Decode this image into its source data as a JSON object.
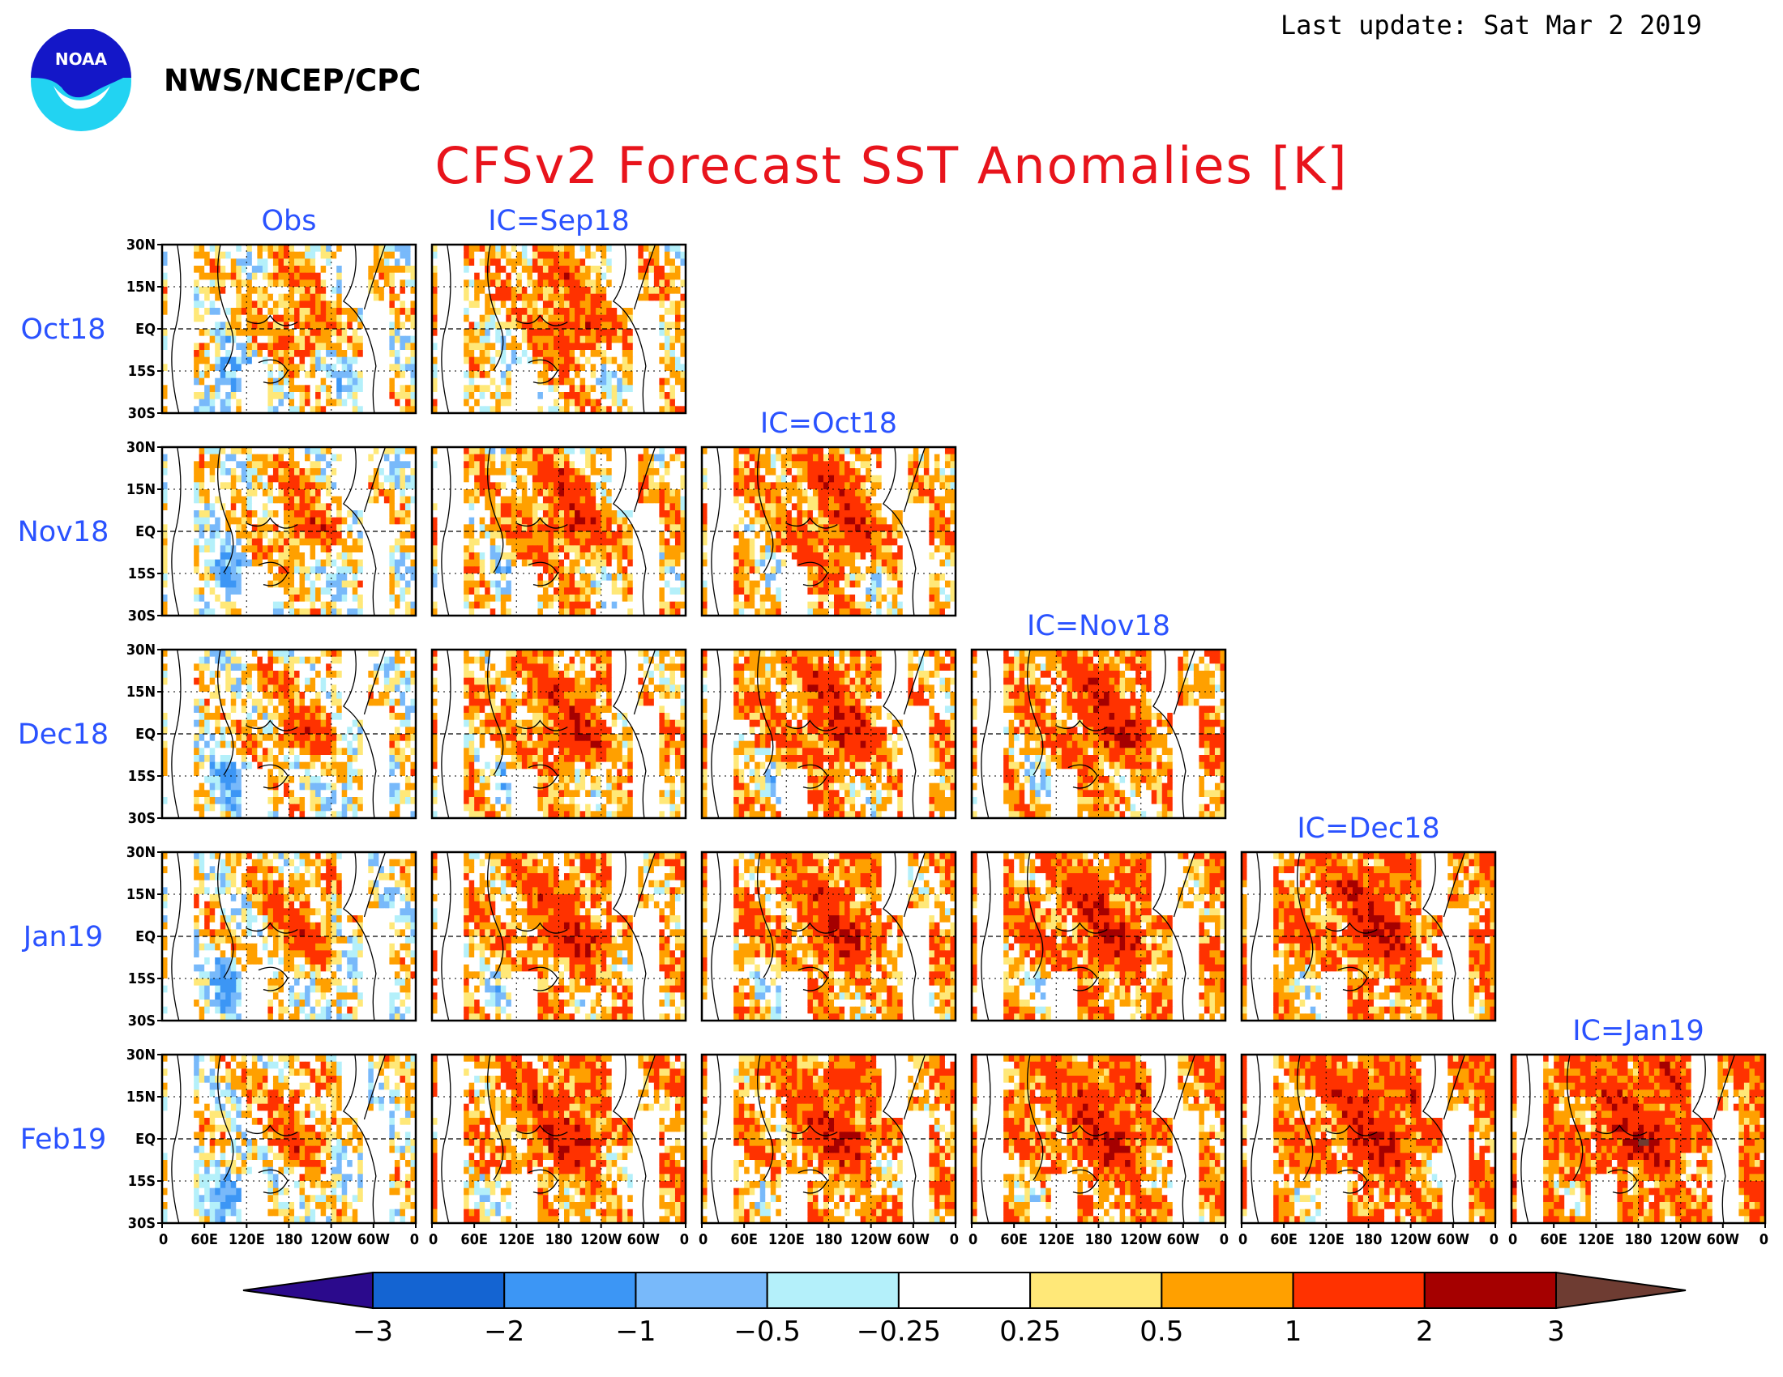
{
  "header": {
    "last_update": "Last update: Sat Mar 2 2019",
    "agency": "NWS/NCEP/CPC",
    "logo_text": "NOAA"
  },
  "chart_data": {
    "type": "heatmap",
    "title": "CFSv2 Forecast SST Anomalies [K]",
    "columns": [
      "Obs",
      "IC=Sep18",
      "IC=Oct18",
      "IC=Nov18",
      "IC=Dec18",
      "IC=Jan19"
    ],
    "rows": [
      "Oct18",
      "Nov18",
      "Dec18",
      "Jan19",
      "Feb19"
    ],
    "panel_layout": "lower-triangular: row i has panels for Obs and IC columns 1..i",
    "y_ticks": [
      "30N",
      "15N",
      "EQ",
      "15S",
      "30S"
    ],
    "x_ticks": [
      "0",
      "60E",
      "120E",
      "180",
      "120W",
      "60W",
      "0"
    ],
    "lat_range": [
      -30,
      30
    ],
    "lon_range": [
      0,
      360
    ],
    "colorbar": {
      "tick_labels": [
        "−3",
        "−2",
        "−1",
        "−0.5",
        "−0.25",
        "0.25",
        "0.5",
        "1",
        "2",
        "3"
      ],
      "bins": [
        {
          "range": "< -3",
          "color": "#2b0a8c"
        },
        {
          "range": "-3 to -2",
          "color": "#1464d2"
        },
        {
          "range": "-2 to -1",
          "color": "#3c96f5"
        },
        {
          "range": "-1 to -0.5",
          "color": "#78b9fa"
        },
        {
          "range": "-0.5 to -0.25",
          "color": "#b4f0fa"
        },
        {
          "range": "-0.25 to 0.25",
          "color": "#ffffff"
        },
        {
          "range": "0.25 to 0.5",
          "color": "#ffe878"
        },
        {
          "range": "0.5 to 1",
          "color": "#ffa000"
        },
        {
          "range": "1 to 2",
          "color": "#ff3200"
        },
        {
          "range": "2 to 3",
          "color": "#a50000"
        },
        {
          "range": "> 3",
          "color": "#6e3c32"
        }
      ]
    }
  }
}
